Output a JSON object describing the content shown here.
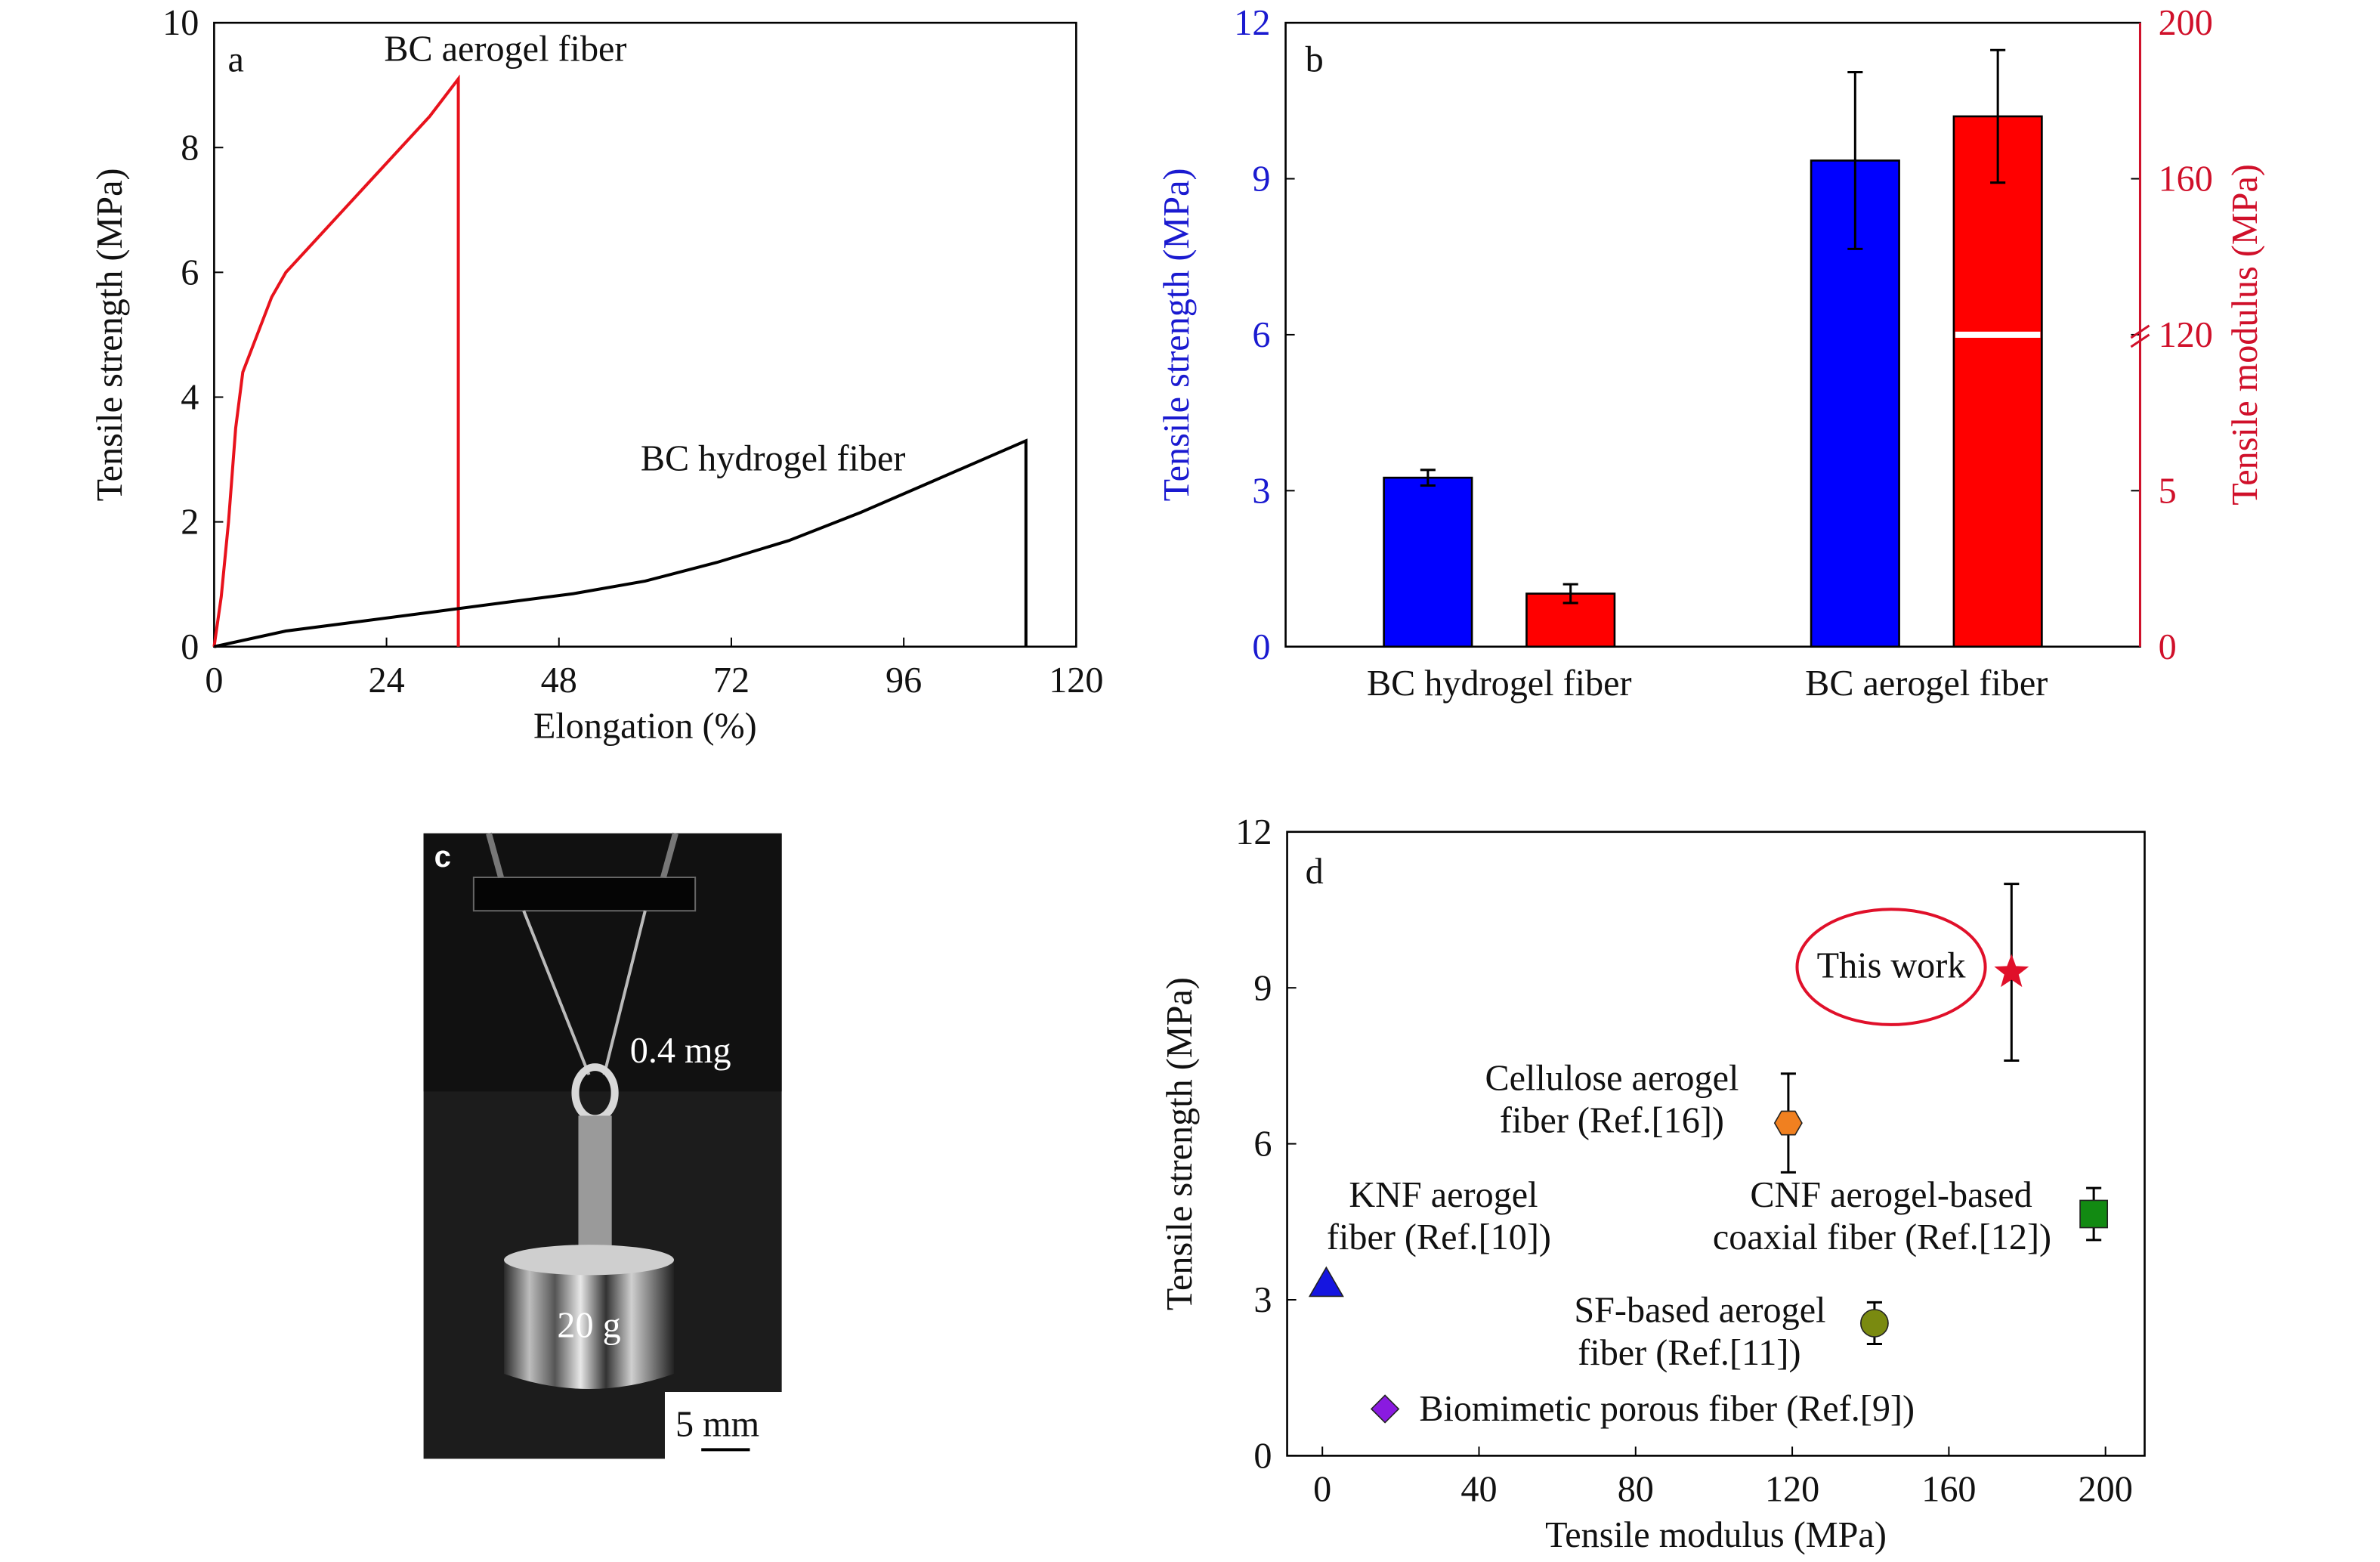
{
  "chart_data": [
    {
      "type": "line",
      "panel_label": "a",
      "xlabel": "Elongation (%)",
      "ylabel": "Tensile strength (MPa)",
      "xlim": [
        0,
        120
      ],
      "ylim": [
        0,
        10
      ],
      "xticks": [
        0,
        24,
        48,
        72,
        96,
        120
      ],
      "yticks": [
        0,
        2,
        4,
        6,
        8,
        10
      ],
      "series": [
        {
          "name": "BC aerogel fiber",
          "color": "#e8121c",
          "x": [
            0,
            1,
            2,
            3,
            4,
            6,
            8,
            10,
            14,
            18,
            22,
            26,
            30,
            34,
            34
          ],
          "values": [
            0,
            0.8,
            2.0,
            3.5,
            4.4,
            5.0,
            5.6,
            6.0,
            6.5,
            7.0,
            7.5,
            8.0,
            8.5,
            9.1,
            0
          ]
        },
        {
          "name": "BC hydrogel fiber",
          "color": "#000000",
          "x": [
            0,
            10,
            20,
            30,
            40,
            50,
            60,
            70,
            80,
            90,
            100,
            113,
            113
          ],
          "values": [
            0,
            0.25,
            0.4,
            0.55,
            0.7,
            0.85,
            1.05,
            1.35,
            1.7,
            2.15,
            2.65,
            3.3,
            0
          ]
        }
      ]
    },
    {
      "type": "bar",
      "panel_label": "b",
      "categories": [
        "BC hydrogel fiber",
        "BC aerogel fiber"
      ],
      "ylabel": "Tensile strength (MPa)",
      "y2label": "Tensile modulus (MPa)",
      "ylim": [
        0,
        12
      ],
      "yticks": [
        0,
        3,
        6,
        9,
        12
      ],
      "y2lim": [
        0,
        200
      ],
      "y2ticks": [
        0,
        5,
        120,
        160,
        200
      ],
      "y2_axis_break": true,
      "ycolor": "#1a1ad0",
      "y2color": "#d0102a",
      "series": [
        {
          "color": "#0000ff",
          "values": [
            3.25,
            9.35
          ],
          "errors": [
            0.15,
            1.7
          ]
        },
        {
          "color": "#ff0000",
          "axis": "y2",
          "values": [
            1.7,
            176
          ],
          "errors": [
            0.3,
            17
          ]
        }
      ]
    },
    {
      "type": "scatter",
      "panel_label": "d",
      "xlabel": "Tensile modulus (MPa)",
      "ylabel": "Tensile strength (MPa)",
      "xlim": [
        -9,
        210
      ],
      "ylim": [
        0,
        12
      ],
      "xticks": [
        0,
        40,
        80,
        120,
        160,
        200
      ],
      "yticks": [
        0,
        3,
        6,
        9,
        12
      ],
      "series": [
        {
          "label": [
            "This work"
          ],
          "color": "#e0102a",
          "marker": "star",
          "highlight": true,
          "x": [
            176
          ],
          "values": [
            9.3
          ],
          "errors": [
            1.7
          ]
        },
        {
          "label": [
            "Cellulose aerogel",
            "fiber (Ref.[16])"
          ],
          "color": "#f08020",
          "marker": "hexagon",
          "x": [
            119
          ],
          "values": [
            6.4
          ],
          "errors": [
            0.95
          ]
        },
        {
          "label": [
            "CNF aerogel-based",
            "coaxial fiber (Ref.[12])"
          ],
          "color": "#128a12",
          "marker": "square",
          "x": [
            197
          ],
          "values": [
            4.65
          ],
          "errors": [
            0.5
          ]
        },
        {
          "label": [
            "KNF aerogel",
            "fiber (Ref.[10])"
          ],
          "color": "#1515e0",
          "marker": "triangle",
          "x": [
            1
          ],
          "values": [
            3.3
          ]
        },
        {
          "label": [
            "SF-based aerogel",
            "fiber (Ref.[11])"
          ],
          "color": "#7a8a10",
          "marker": "circle",
          "x": [
            141
          ],
          "values": [
            2.55
          ],
          "errors": [
            0.4
          ]
        },
        {
          "label": [
            "Biomimetic porous fiber (Ref.[9])"
          ],
          "color": "#8a1ae0",
          "marker": "diamond",
          "x": [
            16
          ],
          "values": [
            0.9
          ],
          "errors": [
            0.1
          ]
        }
      ]
    }
  ],
  "photo": {
    "panel_label": "c",
    "annotations": [
      "0.4 mg",
      "20 g",
      "5 mm"
    ]
  }
}
